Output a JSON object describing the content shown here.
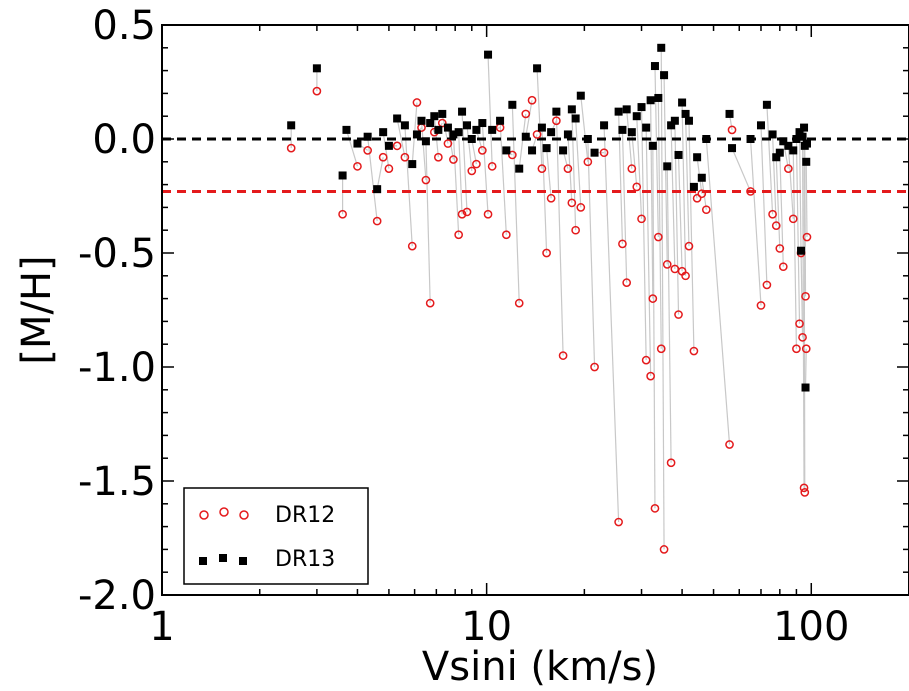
{
  "chart_data": {
    "type": "scatter",
    "xlabel": "Vsini (km/s)",
    "ylabel": "[M/H]",
    "x_scale": "log",
    "xlim": [
      1,
      200
    ],
    "ylim": [
      -2.0,
      0.5
    ],
    "x_ticks": [
      {
        "value": 1,
        "label": "1"
      },
      {
        "value": 10,
        "label": "10"
      },
      {
        "value": 100,
        "label": "100"
      }
    ],
    "y_ticks": [
      {
        "value": 0.5,
        "label": "0.5"
      },
      {
        "value": 0.0,
        "label": "0.0"
      },
      {
        "value": -0.5,
        "label": "-0.5"
      },
      {
        "value": -1.0,
        "label": "-1.0"
      },
      {
        "value": -1.5,
        "label": "-1.5"
      },
      {
        "value": -2.0,
        "label": "-2.0"
      }
    ],
    "reference_lines": [
      {
        "y": 0.0,
        "color": "#000000",
        "style": "dashed"
      },
      {
        "y": -0.23,
        "color": "#e41a1c",
        "style": "dashed"
      }
    ],
    "legend": {
      "position": "bottom-left",
      "entries": [
        {
          "label": "DR12",
          "marker": "open-circle",
          "color": "#e41a1c"
        },
        {
          "label": "DR13",
          "marker": "filled-square",
          "color": "#000000"
        }
      ]
    },
    "connector_color": "#c8c8c8",
    "series": [
      {
        "name": "DR12",
        "marker": "open-circle",
        "color": "#e41a1c",
        "points": [
          [
            2.5,
            -0.04
          ],
          [
            3.0,
            0.21
          ],
          [
            3.6,
            -0.33
          ],
          [
            4.0,
            -0.12
          ],
          [
            4.3,
            -0.05
          ],
          [
            4.6,
            -0.36
          ],
          [
            4.8,
            -0.08
          ],
          [
            5.0,
            -0.13
          ],
          [
            5.3,
            -0.03
          ],
          [
            5.6,
            -0.08
          ],
          [
            5.9,
            -0.47
          ],
          [
            6.1,
            0.16
          ],
          [
            6.3,
            0.05
          ],
          [
            6.5,
            -0.18
          ],
          [
            6.7,
            -0.72
          ],
          [
            6.9,
            0.03
          ],
          [
            7.1,
            -0.08
          ],
          [
            7.3,
            0.07
          ],
          [
            7.6,
            -0.02
          ],
          [
            7.9,
            -0.09
          ],
          [
            8.2,
            -0.42
          ],
          [
            8.4,
            -0.33
          ],
          [
            8.7,
            -0.32
          ],
          [
            9.0,
            -0.14
          ],
          [
            9.3,
            -0.11
          ],
          [
            9.7,
            -0.05
          ],
          [
            10.1,
            -0.33
          ],
          [
            10.4,
            -0.12
          ],
          [
            11.0,
            0.05
          ],
          [
            11.5,
            -0.42
          ],
          [
            12.0,
            -0.07
          ],
          [
            12.6,
            -0.72
          ],
          [
            13.2,
            0.11
          ],
          [
            13.8,
            0.17
          ],
          [
            14.3,
            0.02
          ],
          [
            14.8,
            -0.13
          ],
          [
            15.3,
            -0.5
          ],
          [
            15.8,
            -0.26
          ],
          [
            16.4,
            0.08
          ],
          [
            17.2,
            -0.95
          ],
          [
            17.8,
            -0.13
          ],
          [
            18.3,
            -0.28
          ],
          [
            18.8,
            -0.4
          ],
          [
            19.5,
            -0.3
          ],
          [
            20.5,
            -0.1
          ],
          [
            21.5,
            -1.0
          ],
          [
            23.0,
            -0.06
          ],
          [
            25.5,
            -1.68
          ],
          [
            26.2,
            -0.46
          ],
          [
            27.0,
            -0.63
          ],
          [
            28.0,
            -0.13
          ],
          [
            29.0,
            -0.21
          ],
          [
            30.0,
            -0.35
          ],
          [
            31.0,
            -0.97
          ],
          [
            32.0,
            -1.04
          ],
          [
            32.5,
            -0.7
          ],
          [
            33.0,
            -1.62
          ],
          [
            33.8,
            -0.43
          ],
          [
            34.5,
            -0.92
          ],
          [
            35.2,
            -1.8
          ],
          [
            36.0,
            -0.55
          ],
          [
            37.0,
            -1.42
          ],
          [
            38.0,
            -0.57
          ],
          [
            39.0,
            -0.77
          ],
          [
            40.0,
            -0.58
          ],
          [
            41.0,
            -0.6
          ],
          [
            42.0,
            -0.47
          ],
          [
            43.5,
            -0.93
          ],
          [
            44.5,
            -0.26
          ],
          [
            46.0,
            -0.24
          ],
          [
            47.5,
            -0.31
          ],
          [
            56.0,
            -1.34
          ],
          [
            57.0,
            0.04
          ],
          [
            65.0,
            -0.23
          ],
          [
            70.0,
            -0.73
          ],
          [
            73.0,
            -0.64
          ],
          [
            76.0,
            -0.33
          ],
          [
            78.0,
            -0.38
          ],
          [
            80.0,
            -0.48
          ],
          [
            82.0,
            -0.56
          ],
          [
            85.0,
            -0.13
          ],
          [
            88.0,
            -0.35
          ],
          [
            90.0,
            -0.92
          ],
          [
            92.0,
            -0.81
          ],
          [
            93.0,
            -0.5
          ],
          [
            94.0,
            -0.87
          ],
          [
            95.0,
            -1.53
          ],
          [
            95.5,
            -1.55
          ],
          [
            96.0,
            -0.69
          ],
          [
            96.5,
            -0.92
          ],
          [
            97.0,
            -0.43
          ]
        ]
      },
      {
        "name": "DR13",
        "marker": "filled-square",
        "color": "#000000",
        "points": [
          [
            2.5,
            0.06
          ],
          [
            3.0,
            0.31
          ],
          [
            3.6,
            -0.16
          ],
          [
            3.7,
            0.04
          ],
          [
            4.0,
            -0.02
          ],
          [
            4.3,
            0.01
          ],
          [
            4.6,
            -0.22
          ],
          [
            4.8,
            0.03
          ],
          [
            5.0,
            -0.03
          ],
          [
            5.3,
            0.09
          ],
          [
            5.6,
            0.06
          ],
          [
            5.9,
            -0.11
          ],
          [
            6.1,
            0.02
          ],
          [
            6.3,
            0.08
          ],
          [
            6.5,
            -0.01
          ],
          [
            6.7,
            0.07
          ],
          [
            6.9,
            0.1
          ],
          [
            7.1,
            0.04
          ],
          [
            7.3,
            0.11
          ],
          [
            7.6,
            0.05
          ],
          [
            7.9,
            0.02
          ],
          [
            8.2,
            0.03
          ],
          [
            8.4,
            0.12
          ],
          [
            8.7,
            0.06
          ],
          [
            9.0,
            0.0
          ],
          [
            9.3,
            0.04
          ],
          [
            9.7,
            0.07
          ],
          [
            10.1,
            0.37
          ],
          [
            10.4,
            0.04
          ],
          [
            11.0,
            0.08
          ],
          [
            11.5,
            -0.05
          ],
          [
            12.0,
            0.15
          ],
          [
            12.6,
            -0.13
          ],
          [
            13.2,
            0.01
          ],
          [
            13.8,
            -0.05
          ],
          [
            14.3,
            0.31
          ],
          [
            14.8,
            0.05
          ],
          [
            15.3,
            -0.04
          ],
          [
            15.8,
            0.03
          ],
          [
            16.4,
            0.12
          ],
          [
            17.2,
            -0.05
          ],
          [
            17.8,
            0.02
          ],
          [
            18.3,
            0.13
          ],
          [
            18.8,
            0.09
          ],
          [
            19.5,
            0.19
          ],
          [
            20.5,
            0.0
          ],
          [
            21.5,
            -0.06
          ],
          [
            23.0,
            0.06
          ],
          [
            25.5,
            0.12
          ],
          [
            26.2,
            0.04
          ],
          [
            27.0,
            0.13
          ],
          [
            28.0,
            0.03
          ],
          [
            29.0,
            0.1
          ],
          [
            30.0,
            0.14
          ],
          [
            31.0,
            0.05
          ],
          [
            32.0,
            0.17
          ],
          [
            32.5,
            -0.03
          ],
          [
            33.0,
            0.32
          ],
          [
            33.8,
            0.18
          ],
          [
            34.5,
            0.4
          ],
          [
            35.2,
            0.28
          ],
          [
            36.0,
            -0.12
          ],
          [
            37.0,
            0.06
          ],
          [
            38.0,
            0.08
          ],
          [
            39.0,
            -0.07
          ],
          [
            40.0,
            0.16
          ],
          [
            41.0,
            0.11
          ],
          [
            42.0,
            0.08
          ],
          [
            43.5,
            -0.21
          ],
          [
            44.5,
            -0.08
          ],
          [
            46.0,
            -0.17
          ],
          [
            47.5,
            0.0
          ],
          [
            56.0,
            0.11
          ],
          [
            57.0,
            -0.04
          ],
          [
            65.0,
            0.0
          ],
          [
            70.0,
            0.06
          ],
          [
            73.0,
            0.15
          ],
          [
            76.0,
            0.02
          ],
          [
            78.0,
            -0.08
          ],
          [
            80.0,
            -0.06
          ],
          [
            82.0,
            -0.01
          ],
          [
            85.0,
            -0.03
          ],
          [
            88.0,
            -0.05
          ],
          [
            90.0,
            0.0
          ],
          [
            92.0,
            0.03
          ],
          [
            93.0,
            -0.49
          ],
          [
            94.0,
            0.01
          ],
          [
            95.0,
            0.05
          ],
          [
            95.5,
            -0.03
          ],
          [
            96.0,
            -1.09
          ],
          [
            96.5,
            -0.1
          ],
          [
            97.0,
            -0.02
          ]
        ]
      }
    ]
  }
}
